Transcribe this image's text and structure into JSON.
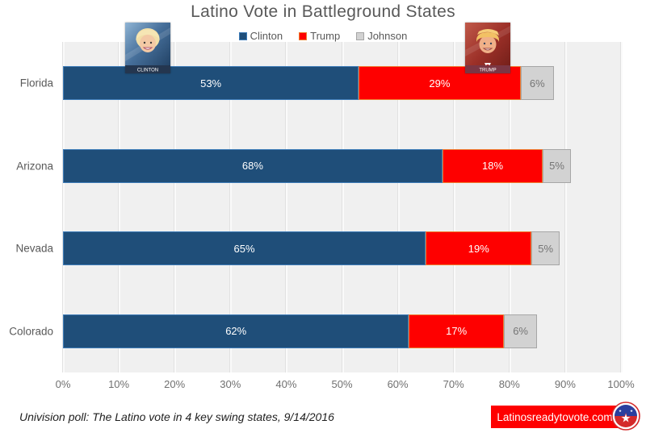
{
  "title": "Latino Vote in Battleground States",
  "chart_data": {
    "type": "bar",
    "stacked": true,
    "orientation": "horizontal",
    "title": "Latino Vote in Battleground States",
    "categories": [
      "Florida",
      "Arizona",
      "Nevada",
      "Colorado"
    ],
    "series": [
      {
        "name": "Clinton",
        "values": [
          53,
          68,
          65,
          62
        ],
        "color": "#1f4e79",
        "border_color": "#3e7cb8",
        "label_color": "#ffffff"
      },
      {
        "name": "Trump",
        "values": [
          29,
          18,
          19,
          17
        ],
        "color": "#fe0000",
        "border_color": "#ed7d31",
        "label_color": "#ffffff"
      },
      {
        "name": "Johnson",
        "values": [
          6,
          5,
          5,
          6
        ],
        "color": "#d2d2d2",
        "border_color": "#a6a6a6",
        "label_color": "#757575"
      }
    ],
    "value_suffix": "%",
    "xlabel": "",
    "ylabel": "",
    "xlim": [
      0,
      100
    ],
    "x_ticks": [
      "0%",
      "10%",
      "20%",
      "30%",
      "40%",
      "50%",
      "60%",
      "70%",
      "80%",
      "90%",
      "100%"
    ],
    "grid": true,
    "legend_position": "top",
    "plot_background": "#f0f0f0"
  },
  "photos": {
    "clinton_caption": "CLINTON",
    "trump_caption": "TRUMP"
  },
  "footnote": "Univision poll: The Latino vote in 4 key swing states, 9/14/2016",
  "badge": {
    "text": "Latinosreadytovote.com",
    "color": "#fe0000"
  }
}
